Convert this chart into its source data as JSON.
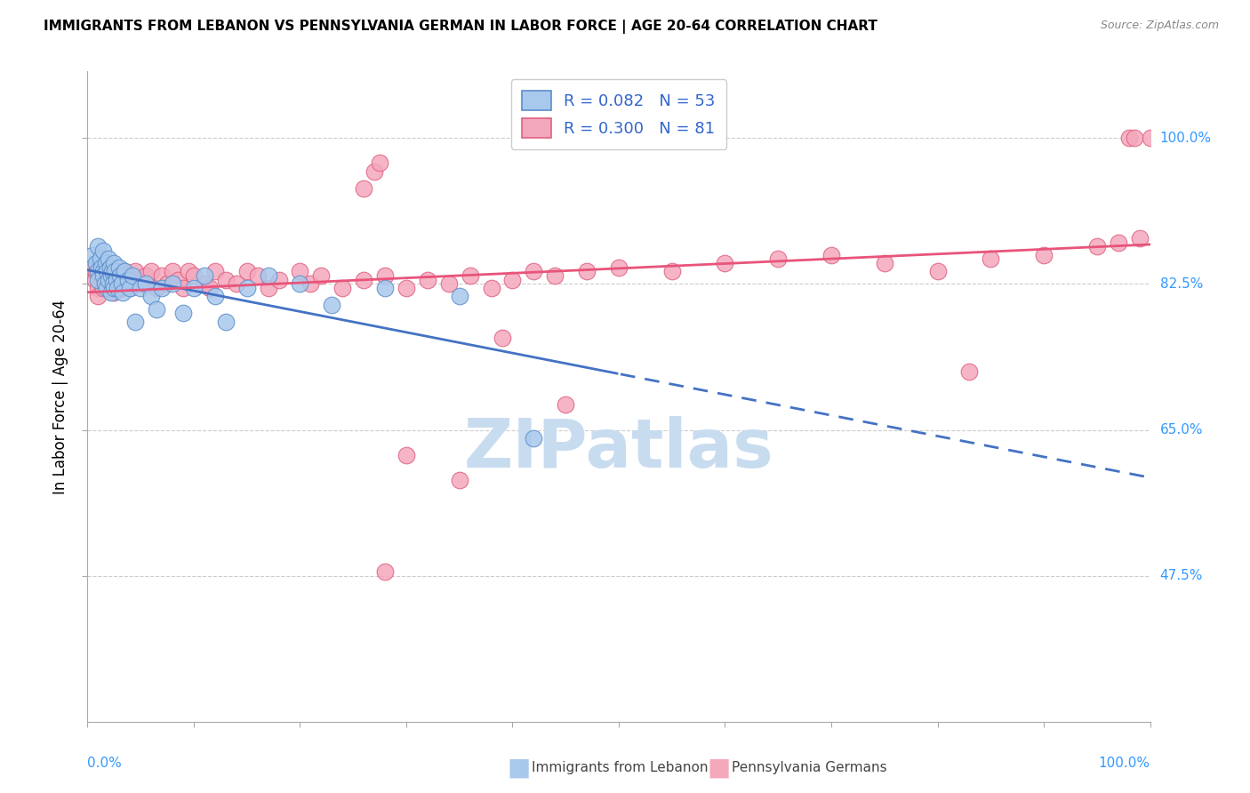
{
  "title": "IMMIGRANTS FROM LEBANON VS PENNSYLVANIA GERMAN IN LABOR FORCE | AGE 20-64 CORRELATION CHART",
  "source": "Source: ZipAtlas.com",
  "ylabel": "In Labor Force | Age 20-64",
  "legend_r1_text": "R = 0.082   N = 53",
  "legend_r2_text": "R = 0.300   N = 81",
  "legend_label1": "Immigrants from Lebanon",
  "legend_label2": "Pennsylvania Germans",
  "ytick_labels": [
    "47.5%",
    "65.0%",
    "82.5%",
    "100.0%"
  ],
  "ytick_values": [
    0.475,
    0.65,
    0.825,
    1.0
  ],
  "xlim": [
    0.0,
    1.0
  ],
  "ylim": [
    0.3,
    1.08
  ],
  "blue_fill": "#A8C8EC",
  "blue_edge": "#5B8FCC",
  "pink_fill": "#F4A8BC",
  "pink_edge": "#E06080",
  "blue_line": "#4472C4",
  "pink_line": "#E8547A",
  "grid_color": "#CCCCCC",
  "watermark_color": "#C8DCF0",
  "xlabel_color": "#3399FF",
  "ytick_color": "#3399FF",
  "watermark": "ZIPatlas",
  "blue_r": 0.082,
  "pink_r": 0.3,
  "blue_n": 53,
  "pink_n": 81,
  "blue_points_x": [
    0.005,
    0.008,
    0.01,
    0.01,
    0.01,
    0.012,
    0.013,
    0.015,
    0.015,
    0.015,
    0.016,
    0.017,
    0.018,
    0.018,
    0.02,
    0.02,
    0.021,
    0.022,
    0.022,
    0.023,
    0.024,
    0.025,
    0.025,
    0.026,
    0.027,
    0.028,
    0.03,
    0.031,
    0.032,
    0.033,
    0.035,
    0.038,
    0.04,
    0.042,
    0.045,
    0.05,
    0.055,
    0.06,
    0.065,
    0.07,
    0.08,
    0.09,
    0.1,
    0.11,
    0.12,
    0.13,
    0.15,
    0.17,
    0.2,
    0.23,
    0.28,
    0.35,
    0.42
  ],
  "blue_points_y": [
    0.86,
    0.85,
    0.87,
    0.84,
    0.83,
    0.855,
    0.845,
    0.865,
    0.84,
    0.835,
    0.825,
    0.85,
    0.84,
    0.82,
    0.855,
    0.83,
    0.845,
    0.835,
    0.815,
    0.84,
    0.825,
    0.85,
    0.82,
    0.84,
    0.83,
    0.82,
    0.845,
    0.835,
    0.825,
    0.815,
    0.84,
    0.83,
    0.82,
    0.835,
    0.78,
    0.82,
    0.825,
    0.81,
    0.795,
    0.82,
    0.825,
    0.79,
    0.82,
    0.835,
    0.81,
    0.78,
    0.82,
    0.835,
    0.825,
    0.8,
    0.82,
    0.81,
    0.64
  ],
  "pink_points_x": [
    0.005,
    0.007,
    0.008,
    0.01,
    0.01,
    0.012,
    0.015,
    0.015,
    0.018,
    0.02,
    0.022,
    0.025,
    0.025,
    0.028,
    0.03,
    0.032,
    0.035,
    0.035,
    0.038,
    0.04,
    0.042,
    0.045,
    0.05,
    0.055,
    0.06,
    0.065,
    0.07,
    0.075,
    0.08,
    0.085,
    0.09,
    0.095,
    0.1,
    0.11,
    0.115,
    0.12,
    0.13,
    0.14,
    0.15,
    0.16,
    0.17,
    0.18,
    0.2,
    0.21,
    0.22,
    0.24,
    0.26,
    0.28,
    0.3,
    0.32,
    0.34,
    0.36,
    0.38,
    0.4,
    0.42,
    0.44,
    0.47,
    0.5,
    0.55,
    0.6,
    0.65,
    0.7,
    0.75,
    0.8,
    0.85,
    0.9,
    0.95,
    0.97,
    0.99,
    1.0,
    0.26,
    0.27,
    0.275,
    0.39,
    0.45,
    0.3,
    0.35,
    0.28,
    0.83,
    0.98,
    0.985
  ],
  "pink_points_y": [
    0.845,
    0.83,
    0.84,
    0.82,
    0.81,
    0.84,
    0.835,
    0.82,
    0.83,
    0.84,
    0.825,
    0.835,
    0.815,
    0.84,
    0.83,
    0.82,
    0.84,
    0.825,
    0.835,
    0.82,
    0.83,
    0.84,
    0.825,
    0.835,
    0.84,
    0.82,
    0.835,
    0.825,
    0.84,
    0.83,
    0.82,
    0.84,
    0.835,
    0.825,
    0.82,
    0.84,
    0.83,
    0.825,
    0.84,
    0.835,
    0.82,
    0.83,
    0.84,
    0.825,
    0.835,
    0.82,
    0.83,
    0.835,
    0.82,
    0.83,
    0.825,
    0.835,
    0.82,
    0.83,
    0.84,
    0.835,
    0.84,
    0.845,
    0.84,
    0.85,
    0.855,
    0.86,
    0.85,
    0.84,
    0.855,
    0.86,
    0.87,
    0.875,
    0.88,
    1.0,
    0.94,
    0.96,
    0.97,
    0.76,
    0.68,
    0.62,
    0.59,
    0.48,
    0.72,
    1.0,
    1.0
  ]
}
